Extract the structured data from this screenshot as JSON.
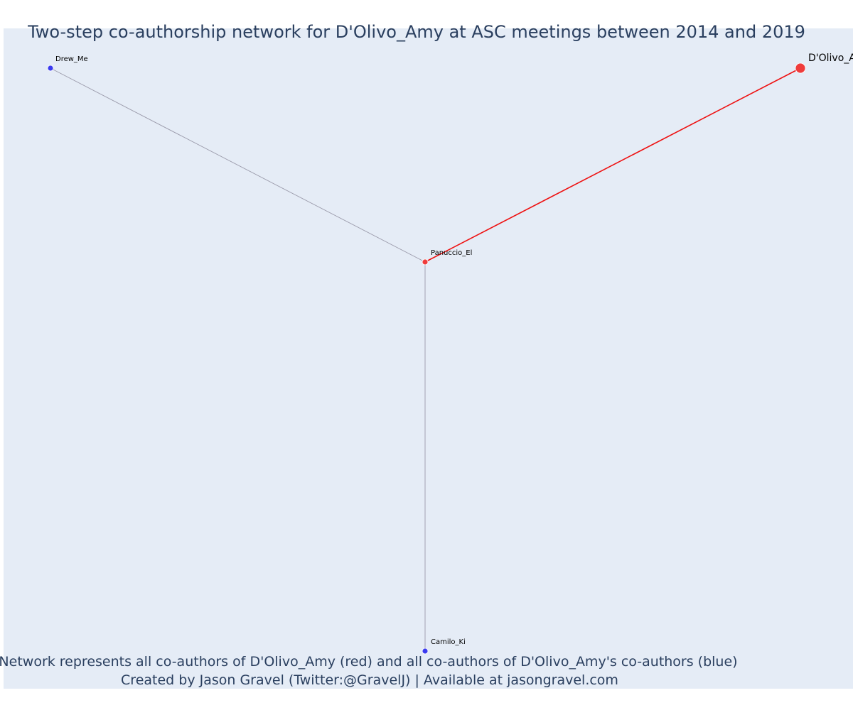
{
  "title": "Two-step co-authorship network for D'Olivo_Amy at ASC meetings between 2014 and 2019",
  "caption": {
    "line1": "Network represents all co-authors of D'Olivo_Amy (red) and all co-authors of D'Olivo_Amy's co-authors (blue)",
    "line2": "Created by Jason Gravel (Twitter:@GravelJ) | Available at jasongravel.com"
  },
  "colors": {
    "plot_bg": "#e5ecf6",
    "focal": "#ef3b3b",
    "coauthor": "#ef3b3b",
    "second_step": "#3b3bef",
    "edge_focal": "#ee1111",
    "edge_other": "#9a9aaa"
  },
  "chart_data": {
    "type": "network",
    "nodes": [
      {
        "id": "D'Olivo_Amy",
        "label": "D'Olivo_Amy",
        "group": "focal"
      },
      {
        "id": "Panuccio_El",
        "label": "Panuccio_El",
        "group": "coauthor"
      },
      {
        "id": "Drew_Me",
        "label": "Drew_Me",
        "group": "second_step"
      },
      {
        "id": "Camilo_Ki",
        "label": "Camilo_Ki",
        "group": "second_step"
      }
    ],
    "edges": [
      {
        "source": "D'Olivo_Amy",
        "target": "Panuccio_El",
        "type": "focal"
      },
      {
        "source": "Panuccio_El",
        "target": "Drew_Me",
        "type": "other"
      },
      {
        "source": "Panuccio_El",
        "target": "Camilo_Ki",
        "type": "other"
      }
    ]
  }
}
